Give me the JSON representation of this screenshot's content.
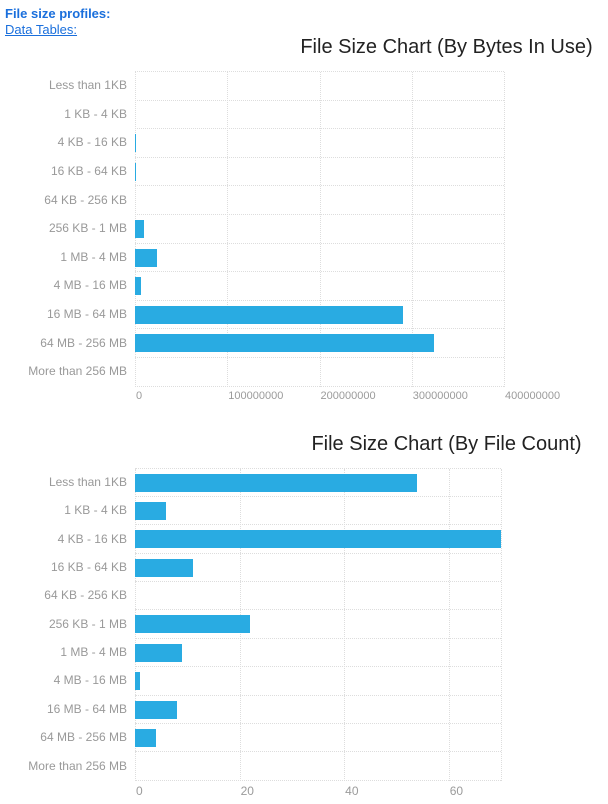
{
  "header": {
    "profiles_label": "File size profiles:",
    "data_tables_label": "Data Tables:"
  },
  "colors": {
    "bar": "#29abe2",
    "link": "#1a6fdc",
    "axis_label": "#999999",
    "grid": "#dddddd",
    "title": "#222222"
  },
  "chart_data": [
    {
      "type": "bar",
      "orientation": "horizontal",
      "title": "File Size Chart (By Bytes In Use)",
      "categories": [
        "Less than 1KB",
        "1 KB - 4 KB",
        "4 KB - 16 KB",
        "16 KB - 64 KB",
        "64 KB - 256 KB",
        "256 KB - 1 MB",
        "1 MB - 4 MB",
        "4 MB - 16 MB",
        "16 MB - 64 MB",
        "64 MB - 256 MB",
        "More than 256 MB"
      ],
      "values": [
        0,
        0,
        1200000,
        600000,
        0,
        10000000,
        24000000,
        6500000,
        290000000,
        324000000,
        0
      ],
      "xlabel": "",
      "ylabel": "",
      "xlim": [
        0,
        400000000
      ],
      "xticks": [
        0,
        100000000,
        200000000,
        300000000,
        400000000
      ],
      "xtick_labels": [
        "0",
        "100000000",
        "200000000",
        "300000000",
        "400000000"
      ],
      "grid": "dotted",
      "legend": "none"
    },
    {
      "type": "bar",
      "orientation": "horizontal",
      "title": "File Size Chart (By File Count)",
      "categories": [
        "Less than 1KB",
        "1 KB - 4 KB",
        "4 KB - 16 KB",
        "16 KB - 64 KB",
        "64 KB - 256 KB",
        "256 KB - 1 MB",
        "1 MB - 4 MB",
        "4 MB - 16 MB",
        "16 MB - 64 MB",
        "64 MB - 256 MB",
        "More than 256 MB"
      ],
      "values": [
        54,
        6,
        70,
        11,
        0,
        22,
        9,
        1,
        8,
        4,
        0
      ],
      "xlabel": "",
      "ylabel": "",
      "xlim": [
        0,
        70
      ],
      "xticks": [
        0,
        20,
        40,
        60
      ],
      "xtick_labels": [
        "0",
        "20",
        "40",
        "60"
      ],
      "grid": "dotted",
      "legend": "none"
    }
  ]
}
